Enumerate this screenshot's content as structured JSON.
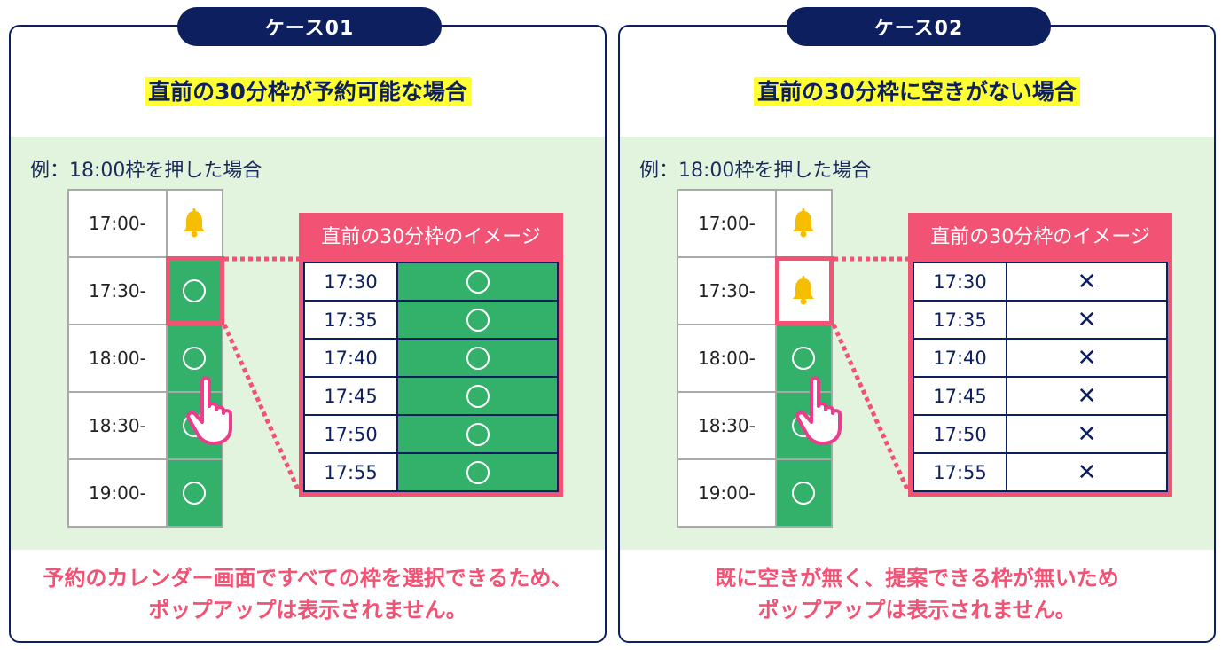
{
  "colors": {
    "navy": "#0d1f5e",
    "pink": "#f25274",
    "green": "#33b06a",
    "light_green": "#e2f4dd",
    "yellow": "#ffff33",
    "bell": "#f5be00"
  },
  "cases": [
    {
      "label": "ケース01",
      "heading": "直前の30分枠が予約可能な場合",
      "example": "例：18:00枠を押した場合",
      "slots": [
        {
          "time": "17:00-",
          "status": "bell"
        },
        {
          "time": "17:30-",
          "status": "circle"
        },
        {
          "time": "18:00-",
          "status": "circle"
        },
        {
          "time": "18:30-",
          "status": "circle"
        },
        {
          "time": "19:00-",
          "status": "circle"
        }
      ],
      "image_title": "直前の30分枠のイメージ",
      "image_rows": [
        {
          "time": "17:30",
          "mark": "circle"
        },
        {
          "time": "17:35",
          "mark": "circle"
        },
        {
          "time": "17:40",
          "mark": "circle"
        },
        {
          "time": "17:45",
          "mark": "circle"
        },
        {
          "time": "17:50",
          "mark": "circle"
        },
        {
          "time": "17:55",
          "mark": "circle"
        }
      ],
      "footer_line1": "予約のカレンダー画面ですべての枠を選択できるため、",
      "footer_line2": "ポップアップは表示されません。"
    },
    {
      "label": "ケース02",
      "heading": "直前の30分枠に空きがない場合",
      "example": "例：18:00枠を押した場合",
      "slots": [
        {
          "time": "17:00-",
          "status": "bell"
        },
        {
          "time": "17:30-",
          "status": "bell"
        },
        {
          "time": "18:00-",
          "status": "circle"
        },
        {
          "time": "18:30-",
          "status": "circle"
        },
        {
          "time": "19:00-",
          "status": "circle"
        }
      ],
      "image_title": "直前の30分枠のイメージ",
      "image_rows": [
        {
          "time": "17:30",
          "mark": "cross"
        },
        {
          "time": "17:35",
          "mark": "cross"
        },
        {
          "time": "17:40",
          "mark": "cross"
        },
        {
          "time": "17:45",
          "mark": "cross"
        },
        {
          "time": "17:50",
          "mark": "cross"
        },
        {
          "time": "17:55",
          "mark": "cross"
        }
      ],
      "footer_line1": "既に空きが無く、提案できる枠が無いため",
      "footer_line2": "ポップアップは表示されません。"
    }
  ],
  "cross_glyph": "✕"
}
